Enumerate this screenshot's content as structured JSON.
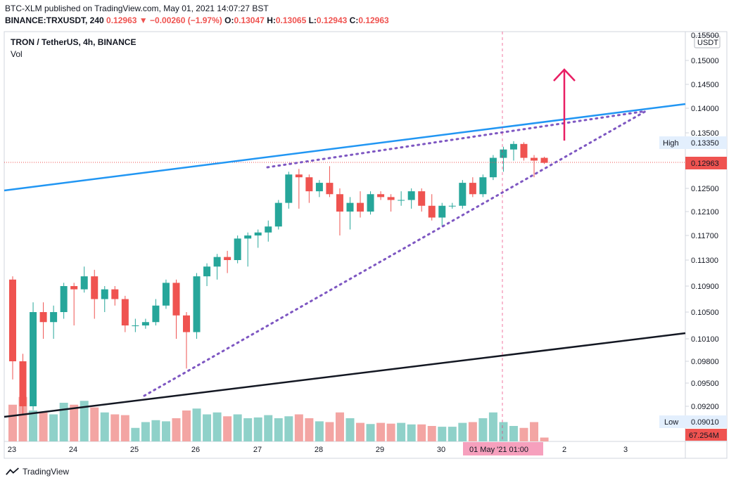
{
  "header": {
    "line1": "BTC-XLM published on TradingView.com, May 01, 2021 14:07:27 BST",
    "symbol": "BINANCE:TRXUSDT, 240",
    "last": "0.12963",
    "change": "−0.00260 (−1.97%)",
    "o_label": "O:",
    "o": "0.13047",
    "h_label": "H:",
    "h": "0.13065",
    "l_label": "L:",
    "l": "0.12943",
    "c_label": "C:",
    "c": "0.12963"
  },
  "legend": {
    "title": "TRON / TetherUS, 4h, BINANCE",
    "vol": "Vol"
  },
  "brand": {
    "name": "TradingView"
  },
  "colors": {
    "up": "#26a69a",
    "down": "#ef5350",
    "up_vol": "#8fd1c9",
    "down_vol": "#f3a5a3",
    "blue_line": "#2196f3",
    "black_line": "#131722",
    "dotted": "#7e57c2",
    "arrow": "#e91e63"
  },
  "chart_data": {
    "type": "candlestick",
    "title": "TRON / TetherUS, 4h, BINANCE",
    "y_ticks": [
      "0.15000",
      "0.14500",
      "0.14000",
      "0.13500",
      "0.12500",
      "0.12100",
      "0.11700",
      "0.11300",
      "0.10900",
      "0.10500",
      "0.10100",
      "0.09800",
      "0.09500",
      "0.09200"
    ],
    "y_top_partial": "0.15500",
    "x_ticks": [
      "23",
      "24",
      "25",
      "26",
      "27",
      "28",
      "29",
      "30",
      "2",
      "3"
    ],
    "currency_badge": "USDT",
    "price_label": "0.12963",
    "high_label": "High",
    "high_value": "0.13350",
    "low_label": "Low",
    "low_value": "0.09010",
    "volume_label": "67.254M",
    "crosshair_label": "01 May '21  01:00",
    "candles": [
      {
        "o": 0.11,
        "h": 0.1105,
        "l": 0.0955,
        "c": 0.098
      },
      {
        "o": 0.098,
        "h": 0.099,
        "l": 0.091,
        "c": 0.092
      },
      {
        "o": 0.092,
        "h": 0.1065,
        "l": 0.0915,
        "c": 0.105
      },
      {
        "o": 0.105,
        "h": 0.1065,
        "l": 0.101,
        "c": 0.1035
      },
      {
        "o": 0.1035,
        "h": 0.106,
        "l": 0.101,
        "c": 0.105
      },
      {
        "o": 0.105,
        "h": 0.1095,
        "l": 0.104,
        "c": 0.109
      },
      {
        "o": 0.109,
        "h": 0.1095,
        "l": 0.103,
        "c": 0.1085
      },
      {
        "o": 0.1085,
        "h": 0.112,
        "l": 0.108,
        "c": 0.1105
      },
      {
        "o": 0.1105,
        "h": 0.1115,
        "l": 0.104,
        "c": 0.107
      },
      {
        "o": 0.107,
        "h": 0.109,
        "l": 0.105,
        "c": 0.1085
      },
      {
        "o": 0.1085,
        "h": 0.109,
        "l": 0.106,
        "c": 0.107
      },
      {
        "o": 0.107,
        "h": 0.1075,
        "l": 0.102,
        "c": 0.103
      },
      {
        "o": 0.103,
        "h": 0.104,
        "l": 0.102,
        "c": 0.103
      },
      {
        "o": 0.103,
        "h": 0.104,
        "l": 0.1025,
        "c": 0.1035
      },
      {
        "o": 0.1035,
        "h": 0.107,
        "l": 0.103,
        "c": 0.106
      },
      {
        "o": 0.106,
        "h": 0.11,
        "l": 0.1055,
        "c": 0.1095
      },
      {
        "o": 0.1095,
        "h": 0.11,
        "l": 0.101,
        "c": 0.1045
      },
      {
        "o": 0.1045,
        "h": 0.105,
        "l": 0.097,
        "c": 0.102
      },
      {
        "o": 0.102,
        "h": 0.111,
        "l": 0.101,
        "c": 0.1105
      },
      {
        "o": 0.1105,
        "h": 0.1125,
        "l": 0.109,
        "c": 0.112
      },
      {
        "o": 0.112,
        "h": 0.114,
        "l": 0.11,
        "c": 0.1135
      },
      {
        "o": 0.1135,
        "h": 0.1145,
        "l": 0.111,
        "c": 0.113
      },
      {
        "o": 0.113,
        "h": 0.117,
        "l": 0.1125,
        "c": 0.1165
      },
      {
        "o": 0.1165,
        "h": 0.1175,
        "l": 0.112,
        "c": 0.117
      },
      {
        "o": 0.117,
        "h": 0.118,
        "l": 0.115,
        "c": 0.1175
      },
      {
        "o": 0.1175,
        "h": 0.1195,
        "l": 0.116,
        "c": 0.1185
      },
      {
        "o": 0.1185,
        "h": 0.123,
        "l": 0.118,
        "c": 0.1225
      },
      {
        "o": 0.1225,
        "h": 0.128,
        "l": 0.1215,
        "c": 0.1275
      },
      {
        "o": 0.1275,
        "h": 0.1285,
        "l": 0.1215,
        "c": 0.127
      },
      {
        "o": 0.127,
        "h": 0.1275,
        "l": 0.1225,
        "c": 0.1245
      },
      {
        "o": 0.1245,
        "h": 0.1265,
        "l": 0.1235,
        "c": 0.126
      },
      {
        "o": 0.126,
        "h": 0.129,
        "l": 0.1235,
        "c": 0.124
      },
      {
        "o": 0.124,
        "h": 0.125,
        "l": 0.117,
        "c": 0.121
      },
      {
        "o": 0.121,
        "h": 0.1235,
        "l": 0.118,
        "c": 0.1225
      },
      {
        "o": 0.1225,
        "h": 0.1245,
        "l": 0.12,
        "c": 0.121
      },
      {
        "o": 0.121,
        "h": 0.1245,
        "l": 0.1205,
        "c": 0.124
      },
      {
        "o": 0.124,
        "h": 0.1245,
        "l": 0.123,
        "c": 0.1235
      },
      {
        "o": 0.1235,
        "h": 0.124,
        "l": 0.121,
        "c": 0.123
      },
      {
        "o": 0.123,
        "h": 0.1245,
        "l": 0.122,
        "c": 0.123
      },
      {
        "o": 0.123,
        "h": 0.125,
        "l": 0.1215,
        "c": 0.1245
      },
      {
        "o": 0.1245,
        "h": 0.125,
        "l": 0.121,
        "c": 0.122
      },
      {
        "o": 0.122,
        "h": 0.124,
        "l": 0.1195,
        "c": 0.12
      },
      {
        "o": 0.12,
        "h": 0.1225,
        "l": 0.1185,
        "c": 0.122
      },
      {
        "o": 0.122,
        "h": 0.1225,
        "l": 0.1215,
        "c": 0.122
      },
      {
        "o": 0.122,
        "h": 0.1265,
        "l": 0.1215,
        "c": 0.126
      },
      {
        "o": 0.126,
        "h": 0.127,
        "l": 0.1235,
        "c": 0.124
      },
      {
        "o": 0.124,
        "h": 0.1275,
        "l": 0.1235,
        "c": 0.127
      },
      {
        "o": 0.127,
        "h": 0.131,
        "l": 0.1265,
        "c": 0.1305
      },
      {
        "o": 0.1305,
        "h": 0.1325,
        "l": 0.128,
        "c": 0.132
      },
      {
        "o": 0.132,
        "h": 0.1335,
        "l": 0.13,
        "c": 0.133
      },
      {
        "o": 0.133,
        "h": 0.1333,
        "l": 0.13,
        "c": 0.1305
      },
      {
        "o": 0.1305,
        "h": 0.131,
        "l": 0.127,
        "c": 0.13
      },
      {
        "o": 0.1305,
        "h": 0.1307,
        "l": 0.1294,
        "c": 0.1296
      }
    ],
    "volumes_m": [
      95,
      115,
      80,
      75,
      70,
      100,
      95,
      105,
      88,
      75,
      70,
      68,
      35,
      50,
      55,
      52,
      60,
      80,
      85,
      70,
      75,
      65,
      70,
      60,
      62,
      68,
      60,
      65,
      70,
      60,
      52,
      50,
      75,
      60,
      48,
      45,
      48,
      46,
      48,
      44,
      44,
      40,
      38,
      38,
      48,
      50,
      60,
      75,
      50,
      40,
      35,
      50,
      10
    ],
    "drawings": {
      "blue_trendline": true,
      "black_trendline": true,
      "rising_wedge_dotted": true,
      "arrow_up": true
    }
  }
}
